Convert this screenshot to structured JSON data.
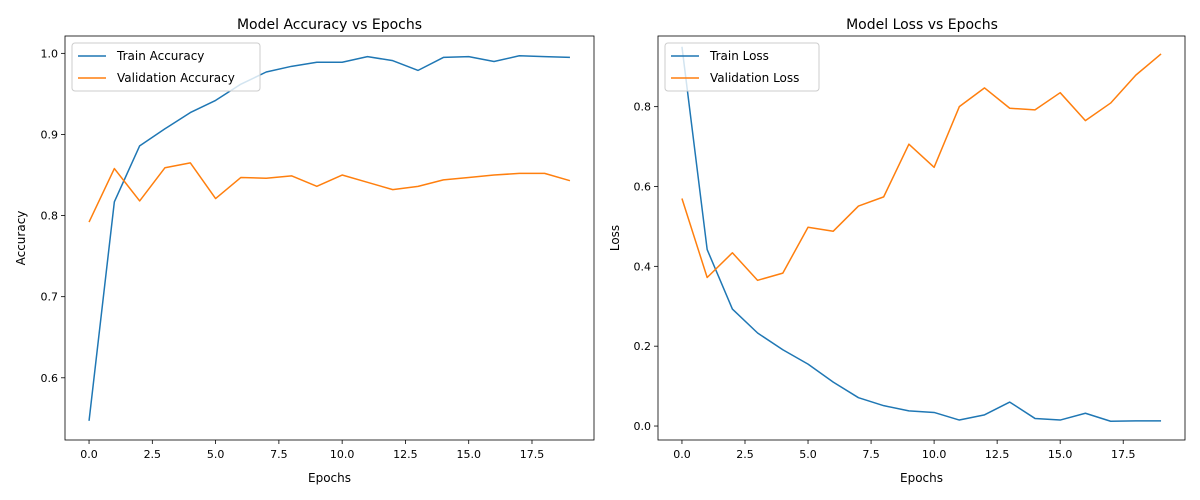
{
  "chart_data": [
    {
      "type": "line",
      "title": "Model Accuracy vs Epochs",
      "xlabel": "Epochs",
      "ylabel": "Accuracy",
      "xlim": [
        -0.95,
        19.95
      ],
      "ylim": [
        0.5233,
        1.0214
      ],
      "xticks": [
        0.0,
        2.5,
        5.0,
        7.5,
        10.0,
        12.5,
        15.0,
        17.5
      ],
      "xtick_labels": [
        "0.0",
        "2.5",
        "5.0",
        "7.5",
        "10.0",
        "12.5",
        "15.0",
        "17.5"
      ],
      "yticks": [
        0.6,
        0.7,
        0.8,
        0.9,
        1.0
      ],
      "ytick_labels": [
        "0.6",
        "0.7",
        "0.8",
        "0.9",
        "1.0"
      ],
      "grid": false,
      "legend_position": "top-left",
      "x": [
        0,
        1,
        2,
        3,
        4,
        5,
        6,
        7,
        8,
        9,
        10,
        11,
        12,
        13,
        14,
        15,
        16,
        17,
        18,
        19
      ],
      "series": [
        {
          "name": "Train Accuracy",
          "color": "#1f77b4",
          "values": [
            0.547,
            0.817,
            0.886,
            0.907,
            0.927,
            0.942,
            0.962,
            0.977,
            0.984,
            0.989,
            0.989,
            0.996,
            0.991,
            0.979,
            0.995,
            0.996,
            0.99,
            0.997,
            0.996,
            0.995
          ]
        },
        {
          "name": "Validation Accuracy",
          "color": "#ff7f0e",
          "values": [
            0.792,
            0.858,
            0.818,
            0.859,
            0.865,
            0.821,
            0.847,
            0.846,
            0.849,
            0.836,
            0.85,
            0.841,
            0.832,
            0.836,
            0.844,
            0.847,
            0.85,
            0.852,
            0.852,
            0.843
          ]
        }
      ]
    },
    {
      "type": "line",
      "title": "Model Loss vs Epochs",
      "xlabel": "Epochs",
      "ylabel": "Loss",
      "xlim": [
        -0.95,
        19.95
      ],
      "ylim": [
        -0.035,
        0.977
      ],
      "xticks": [
        0.0,
        2.5,
        5.0,
        7.5,
        10.0,
        12.5,
        15.0,
        17.5
      ],
      "xtick_labels": [
        "0.0",
        "2.5",
        "5.0",
        "7.5",
        "10.0",
        "12.5",
        "15.0",
        "17.5"
      ],
      "yticks": [
        0.0,
        0.2,
        0.4,
        0.6,
        0.8
      ],
      "ytick_labels": [
        "0.0",
        "0.2",
        "0.4",
        "0.6",
        "0.8"
      ],
      "grid": false,
      "legend_position": "top-left",
      "x": [
        0,
        1,
        2,
        3,
        4,
        5,
        6,
        7,
        8,
        9,
        10,
        11,
        12,
        13,
        14,
        15,
        16,
        17,
        18,
        19
      ],
      "series": [
        {
          "name": "Train Loss",
          "color": "#1f77b4",
          "values": [
            0.95,
            0.442,
            0.293,
            0.233,
            0.191,
            0.155,
            0.11,
            0.071,
            0.051,
            0.038,
            0.034,
            0.015,
            0.028,
            0.06,
            0.019,
            0.015,
            0.032,
            0.012,
            0.013,
            0.013
          ]
        },
        {
          "name": "Validation Loss",
          "color": "#ff7f0e",
          "values": [
            0.57,
            0.372,
            0.434,
            0.365,
            0.383,
            0.498,
            0.488,
            0.551,
            0.574,
            0.706,
            0.648,
            0.8,
            0.847,
            0.796,
            0.792,
            0.835,
            0.765,
            0.809,
            0.879,
            0.932
          ]
        }
      ]
    }
  ]
}
